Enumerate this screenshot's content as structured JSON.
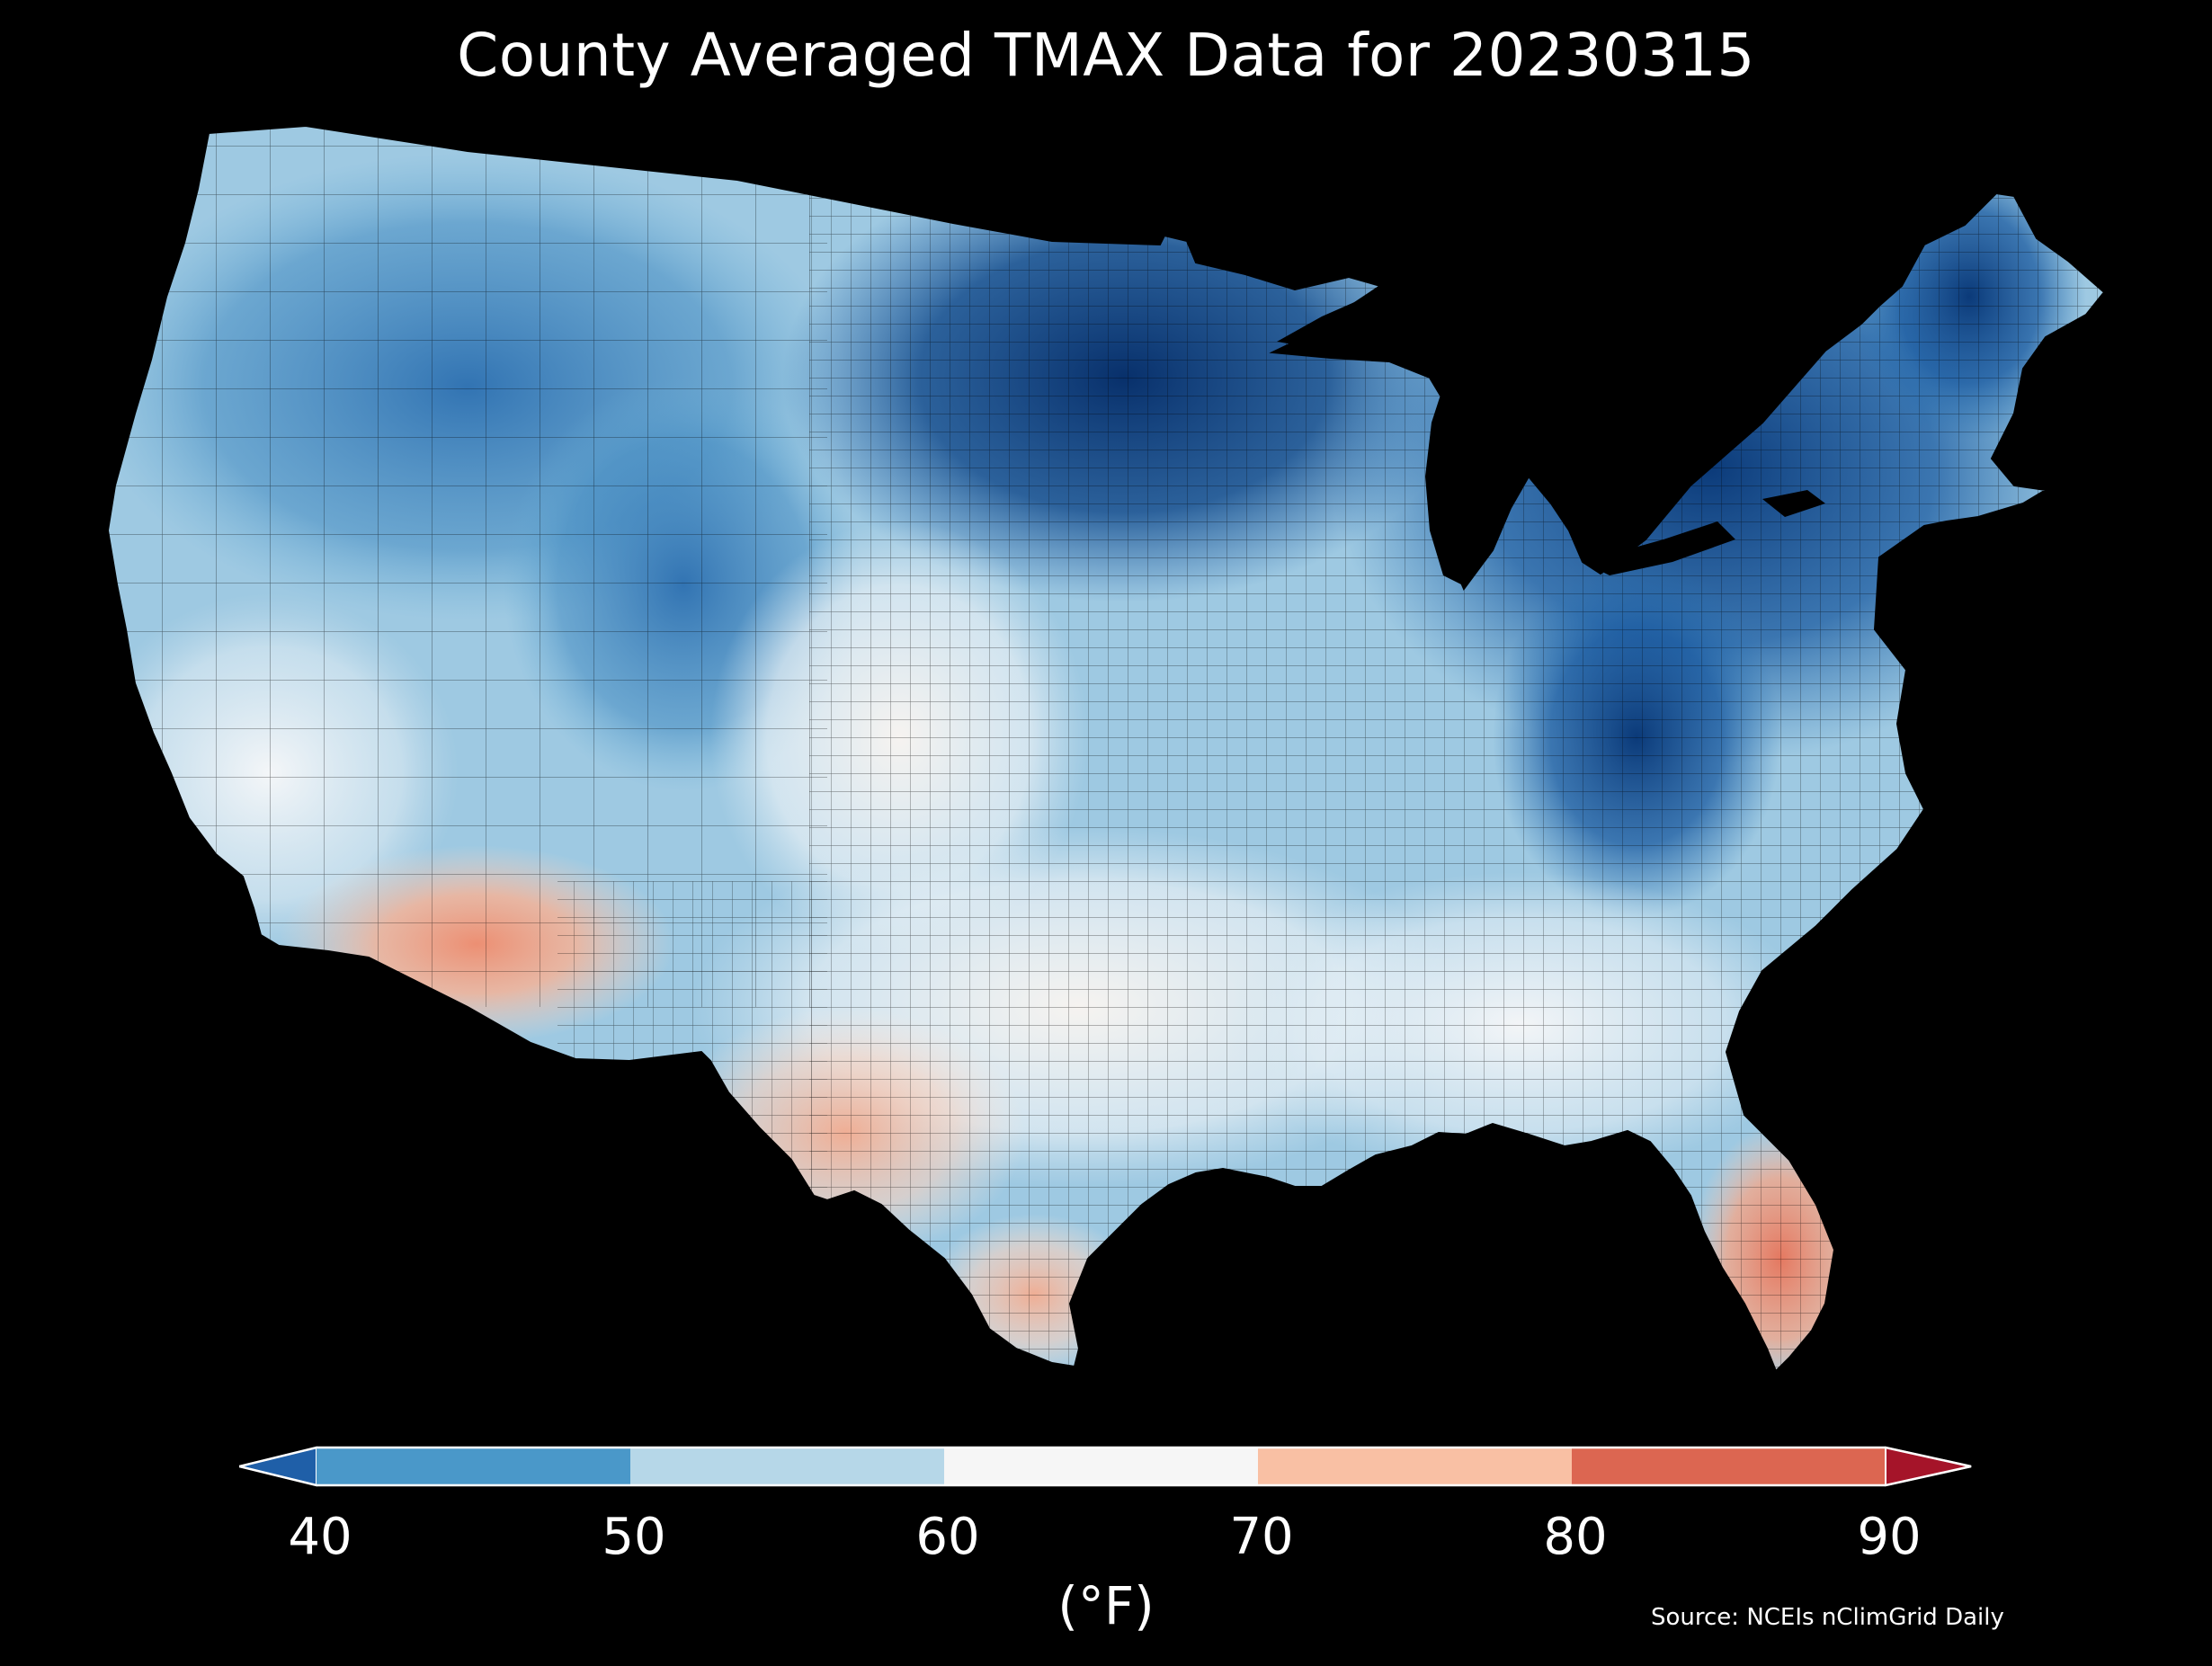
{
  "title": "County Averaged TMAX Data for 20230315",
  "colorbar": {
    "unit_label": "(°F)",
    "ticks": [
      "40",
      "50",
      "60",
      "70",
      "80",
      "90"
    ],
    "bins": [
      {
        "range": [
          40,
          50
        ],
        "color": "#4a98c9"
      },
      {
        "range": [
          50,
          60
        ],
        "color": "#b6d7e8"
      },
      {
        "range": [
          60,
          70
        ],
        "color": "#f6f6f6"
      },
      {
        "range": [
          70,
          80
        ],
        "color": "#f9c0a4"
      },
      {
        "range": [
          80,
          90
        ],
        "color": "#dc6651"
      }
    ],
    "under_color": "#1f5fa8",
    "over_color": "#a51429",
    "extend": "both"
  },
  "source": "Source: NCEIs nClimGrid Daily",
  "colors": {
    "background": "#000000",
    "text": "#ffffff",
    "coldest": "#08306b",
    "cold": "#2166ac",
    "cool": "#4393c3",
    "mild": "#d1e5f0",
    "neutral": "#f7f7f7",
    "warm": "#fddbc7",
    "hot": "#e2775e"
  }
}
